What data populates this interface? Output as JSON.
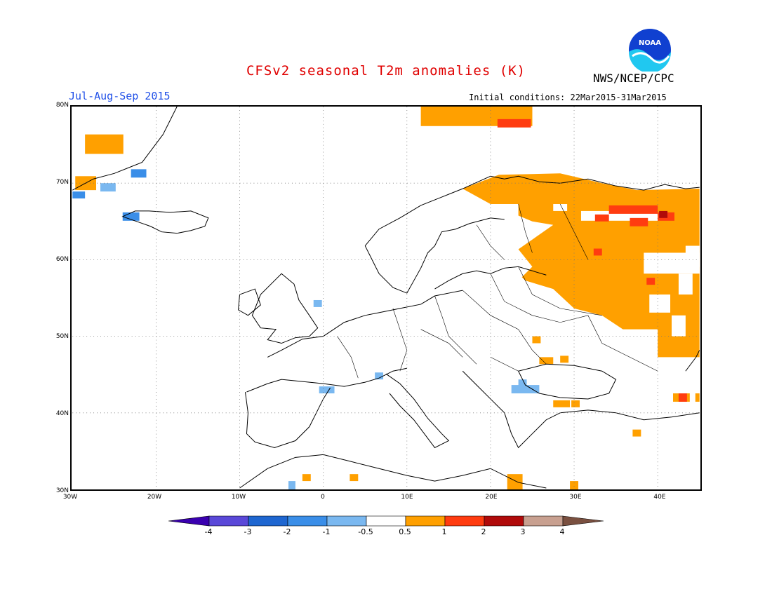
{
  "header": {
    "title": "CFSv2 seasonal T2m anomalies (K)",
    "period": "Jul-Aug-Sep 2015",
    "agency": "NWS/NCEP/CPC",
    "initial_conditions": "Initial conditions: 22Mar2015-31Mar2015",
    "logo_text": "NOAA"
  },
  "map": {
    "lat_ticks": [
      "80N",
      "70N",
      "60N",
      "50N",
      "40N",
      "30N"
    ],
    "lon_ticks": [
      "30W",
      "20W",
      "10W",
      "0",
      "10E",
      "20E",
      "30E",
      "40E"
    ],
    "lon_range": [
      -30,
      45
    ],
    "lat_range": [
      30,
      80
    ],
    "grid_lines": "dotted"
  },
  "colorbar": {
    "labels": [
      "-4",
      "-3",
      "-2",
      "-1",
      "-0.5",
      "0.5",
      "1",
      "2",
      "3",
      "4"
    ],
    "colors": [
      "#3a00b0",
      "#5a48d8",
      "#1e66d0",
      "#3a8ee8",
      "#7ab8f0",
      "#ffffff",
      "#ffa000",
      "#ff3c10",
      "#b00a0a",
      "#c8a090",
      "#7a5040"
    ]
  },
  "colors": {
    "title": "#e00000",
    "period": "#2050e8",
    "positive_anomaly": "#ffa000",
    "strong_positive": "#ff3c10",
    "very_strong_positive": "#b00a0a",
    "negative_anomaly": "#7ab8f0",
    "strong_negative": "#3a8ee8"
  }
}
